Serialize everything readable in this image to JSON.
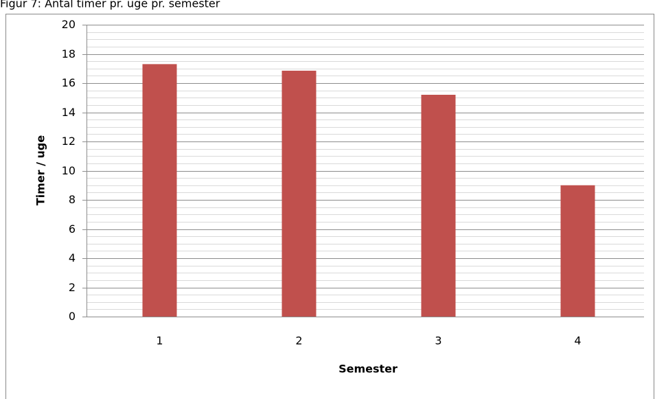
{
  "chart_data": {
    "type": "bar",
    "title": "Figur 7: Antal timer pr. uge pr. semester",
    "x_label": "Semester",
    "y_label": "Timer / uge",
    "categories": [
      "1",
      "2",
      "3",
      "4"
    ],
    "values": [
      17.3,
      16.85,
      15.2,
      9.0
    ],
    "color": "#c0504d",
    "ylim": [
      0,
      20
    ],
    "yticks": [
      0,
      2,
      4,
      6,
      8,
      10,
      12,
      14,
      16,
      18,
      20
    ],
    "grid": true,
    "minor_grid": 0.5
  }
}
